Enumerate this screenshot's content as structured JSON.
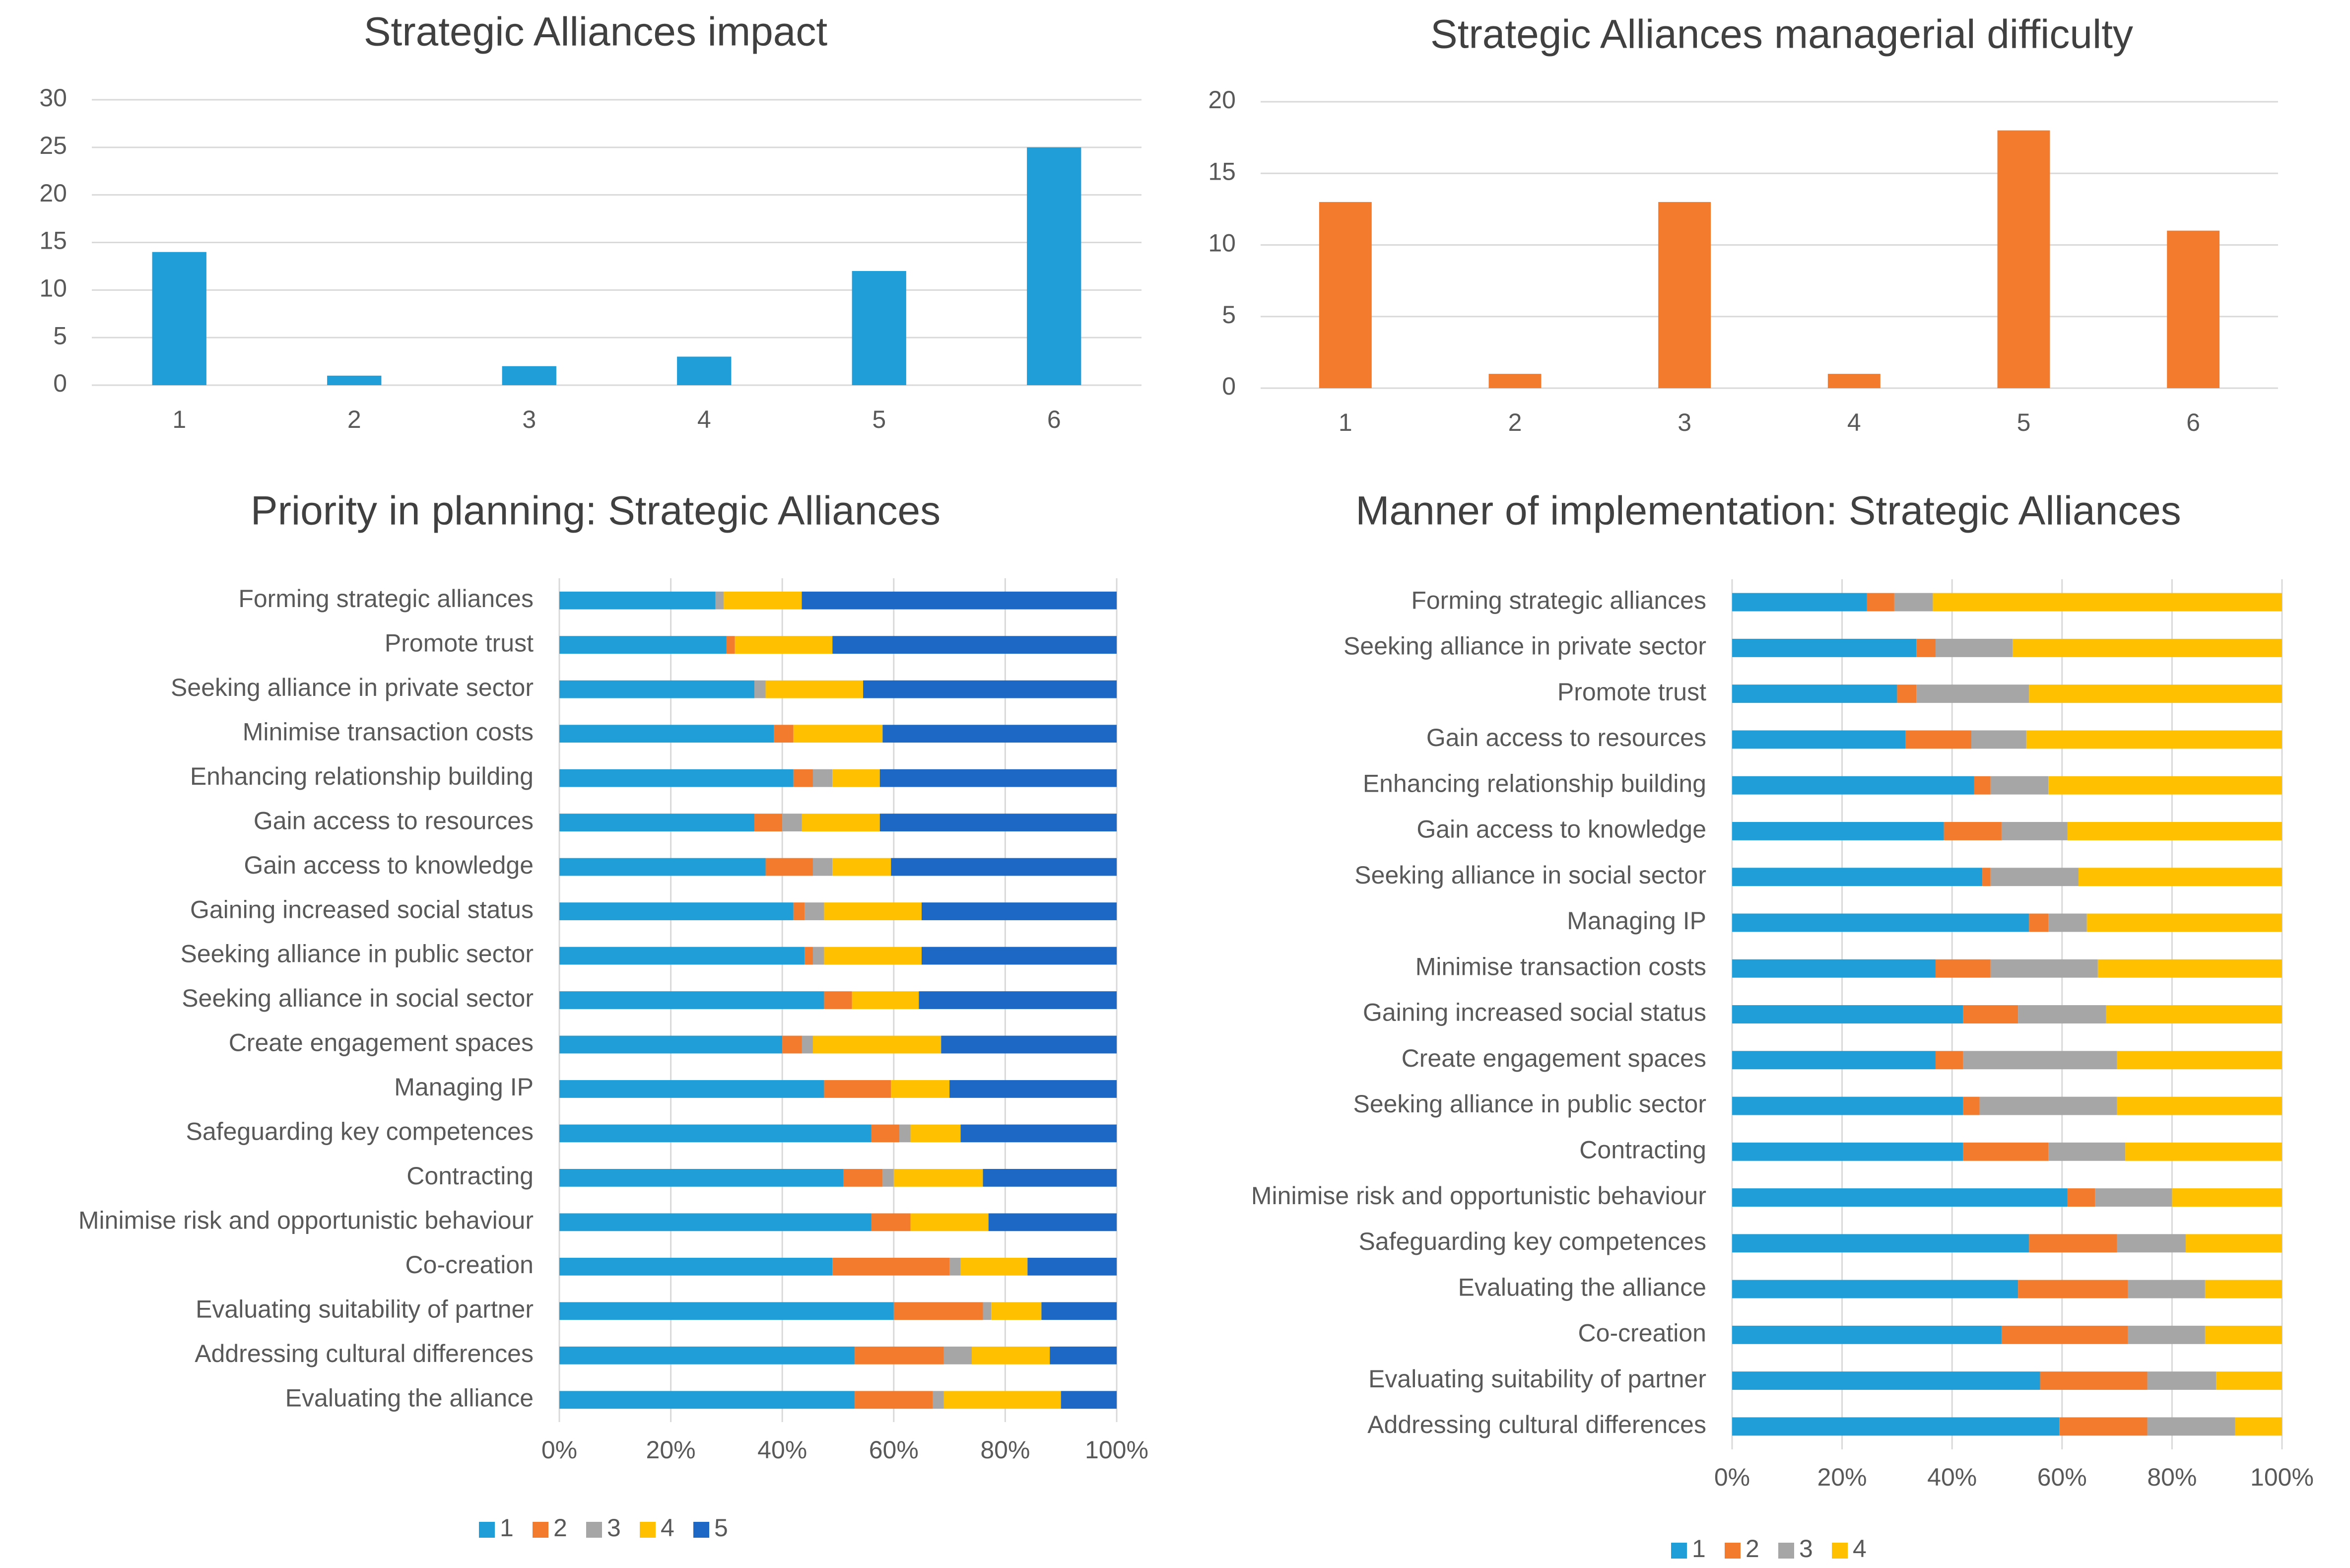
{
  "colors": {
    "s1": "#1F9ED8",
    "s2": "#F27B2E",
    "s3": "#A6A6A6",
    "s4": "#FFC000",
    "s5": "#1C68C4"
  },
  "chart_data": [
    {
      "id": "impact",
      "type": "bar",
      "title": "Strategic Alliances impact",
      "categories": [
        "1",
        "2",
        "3",
        "4",
        "5",
        "6"
      ],
      "values": [
        14,
        1,
        2,
        3,
        12,
        25
      ],
      "ylim": [
        0,
        30
      ],
      "yticks": [
        "0",
        "5",
        "10",
        "15",
        "20",
        "25",
        "30"
      ],
      "color": "#1F9ED8",
      "grid": true
    },
    {
      "id": "difficulty",
      "type": "bar",
      "title": "Strategic Alliances managerial difficulty",
      "categories": [
        "1",
        "2",
        "3",
        "4",
        "5",
        "6"
      ],
      "values": [
        13,
        1,
        13,
        1,
        18,
        11
      ],
      "ylim": [
        0,
        20
      ],
      "yticks": [
        "0",
        "5",
        "10",
        "15",
        "20"
      ],
      "color": "#F27B2E",
      "grid": true
    },
    {
      "id": "priority",
      "type": "bar",
      "orientation": "horizontal-stacked-100",
      "title": "Priority in planning: Strategic Alliances",
      "xticks": [
        "0%",
        "20%",
        "40%",
        "60%",
        "80%",
        "100%"
      ],
      "legend": [
        "1",
        "2",
        "3",
        "4",
        "5"
      ],
      "legend_position": "bottom",
      "categories": [
        "Forming strategic alliances",
        "Promote trust",
        "Seeking alliance in private sector",
        "Minimise transaction costs",
        "Enhancing relationship building",
        "Gain access to resources",
        "Gain access to knowledge",
        "Gaining increased social status",
        "Seeking alliance in public sector",
        "Seeking alliance in social sector",
        "Create engagement spaces",
        "Managing IP",
        "Safeguarding key competences",
        "Contracting",
        "Minimise risk and opportunistic behaviour",
        "Co-creation",
        "Evaluating suitability of partner",
        "Addressing cultural differences",
        "Evaluating the alliance"
      ],
      "series": [
        {
          "name": "1",
          "values": [
            28,
            30,
            35,
            38.5,
            42,
            35,
            37,
            42,
            44,
            47.5,
            40,
            47.5,
            56,
            51,
            56,
            49,
            60,
            53,
            53
          ]
        },
        {
          "name": "2",
          "values": [
            0,
            1.5,
            0,
            3.5,
            3.5,
            5,
            8.5,
            2,
            1.5,
            5,
            3.5,
            12,
            5,
            7,
            7,
            21,
            16,
            16,
            14
          ]
        },
        {
          "name": "3",
          "values": [
            1.5,
            0,
            2,
            0,
            3.5,
            3.5,
            3.5,
            3.5,
            2,
            0,
            2,
            0,
            2,
            2,
            0,
            2,
            1.5,
            5,
            2
          ]
        },
        {
          "name": "4",
          "values": [
            14,
            17.5,
            17.5,
            16,
            8.5,
            14,
            10.5,
            17.5,
            17.5,
            12,
            23,
            10.5,
            9,
            16,
            14,
            12,
            9,
            14,
            21
          ]
        },
        {
          "name": "5",
          "values": [
            56.5,
            51,
            45.5,
            42,
            42.5,
            42.5,
            40.5,
            35,
            35,
            35.5,
            31.5,
            30,
            28,
            24,
            23,
            16,
            13.5,
            12,
            10
          ]
        }
      ]
    },
    {
      "id": "manner",
      "type": "bar",
      "orientation": "horizontal-stacked-100",
      "title": "Manner of implementation: Strategic Alliances",
      "xticks": [
        "0%",
        "20%",
        "40%",
        "60%",
        "80%",
        "100%"
      ],
      "legend": [
        "1",
        "2",
        "3",
        "4"
      ],
      "legend_position": "bottom",
      "categories": [
        "Forming strategic alliances",
        "Seeking alliance in private sector",
        "Promote trust",
        "Gain access to resources",
        "Enhancing relationship building",
        "Gain access to knowledge",
        "Seeking alliance in social sector",
        "Managing IP",
        "Minimise transaction costs",
        "Gaining increased social status",
        "Create engagement spaces",
        "Seeking alliance in public sector",
        "Contracting",
        "Minimise risk and opportunistic behaviour",
        "Safeguarding key competences",
        "Evaluating the alliance",
        "Co-creation",
        "Evaluating suitability of partner",
        "Addressing cultural differences"
      ],
      "series": [
        {
          "name": "1",
          "values": [
            24.5,
            33.5,
            30,
            31.5,
            44,
            38.5,
            45.5,
            54,
            37,
            42,
            37,
            42,
            42,
            61,
            54,
            52,
            49,
            56,
            59.5
          ]
        },
        {
          "name": "2",
          "values": [
            5,
            3.5,
            3.5,
            12,
            3,
            10.5,
            1.5,
            3.5,
            10,
            10,
            5,
            3,
            15.5,
            5,
            16,
            20,
            23,
            19.5,
            16
          ]
        },
        {
          "name": "3",
          "values": [
            7,
            14,
            20.5,
            10,
            10.5,
            12,
            16,
            7,
            19.5,
            16,
            28,
            25,
            14,
            14,
            12.5,
            14,
            14,
            12.5,
            16
          ]
        },
        {
          "name": "4",
          "values": [
            63.5,
            49,
            46,
            46.5,
            42.5,
            39,
            37,
            35.5,
            33.5,
            32,
            30,
            30,
            28.5,
            20,
            17.5,
            14,
            14,
            12,
            8.5
          ]
        }
      ]
    }
  ]
}
